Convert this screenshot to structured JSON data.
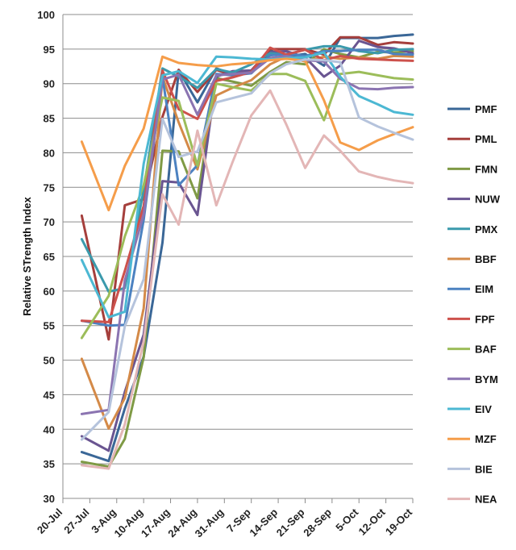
{
  "chart_data": {
    "type": "line",
    "title": "",
    "xlabel": "",
    "ylabel": "Relative STrength Index",
    "ylim": [
      30,
      100
    ],
    "yticks": [
      30,
      35,
      40,
      45,
      50,
      55,
      60,
      65,
      70,
      75,
      80,
      85,
      90,
      95,
      100
    ],
    "grid": "horizontal",
    "legend_position": "right",
    "x_tick_labels": [
      "20-Jul",
      "27-Jul",
      "3-Aug",
      "10-Aug",
      "17-Aug",
      "24-Aug",
      "31-Aug",
      "7-Sep",
      "14-Sep",
      "21-Sep",
      "28-Sep",
      "5-Oct",
      "12-Oct",
      "19-Oct"
    ],
    "x_tick_positions": [
      0,
      1,
      2,
      3,
      4,
      5,
      6,
      7,
      8,
      9,
      10,
      11,
      12,
      13
    ],
    "x": [
      0.7,
      1.7,
      2.3,
      3.0,
      3.7,
      4.3,
      5.0,
      5.7,
      6.3,
      7.0,
      7.7,
      8.3,
      9.0,
      9.7,
      10.3,
      11.0,
      11.7,
      12.3,
      13.0
    ],
    "series": [
      {
        "name": "PMF",
        "color": "#3a6797",
        "values": [
          36.7,
          35.4,
          43.0,
          50.5,
          67.0,
          91.9,
          87.3,
          92.2,
          91.4,
          91.8,
          94.8,
          93.9,
          94.3,
          92.6,
          96.6,
          96.6,
          96.6,
          96.9,
          97.1
        ]
      },
      {
        "name": "PML",
        "color": "#a53f3c",
        "values": [
          70.9,
          53.0,
          72.4,
          73.3,
          85.2,
          92.0,
          88.8,
          92.0,
          91.2,
          91.9,
          95.0,
          95.0,
          95.0,
          94.2,
          96.7,
          96.7,
          95.6,
          96.0,
          95.8
        ]
      },
      {
        "name": "FMN",
        "color": "#7f9a45",
        "values": [
          35.3,
          34.6,
          38.6,
          50.4,
          80.3,
          80.2,
          73.4,
          90.8,
          90.3,
          89.7,
          91.7,
          93.1,
          92.8,
          95.0,
          94.3,
          93.8,
          94.6,
          94.5,
          94.7
        ]
      },
      {
        "name": "NUW",
        "color": "#6a5591",
        "values": [
          39.0,
          36.9,
          45.4,
          53.7,
          75.9,
          75.7,
          71.0,
          91.0,
          91.8,
          91.9,
          94.5,
          94.7,
          93.8,
          91.0,
          92.6,
          96.2,
          95.3,
          95.1,
          94.4
        ]
      },
      {
        "name": "PMX",
        "color": "#3b9aac",
        "values": [
          67.5,
          59.9,
          60.4,
          74.6,
          92.2,
          91.0,
          89.4,
          92.1,
          91.6,
          92.8,
          94.4,
          94.2,
          94.9,
          95.4,
          95.4,
          94.7,
          94.4,
          94.9,
          95.0
        ]
      },
      {
        "name": "BBF",
        "color": "#d48a48",
        "values": [
          50.2,
          40.1,
          44.5,
          57.5,
          91.0,
          84.4,
          77.6,
          88.3,
          89.4,
          90.5,
          92.8,
          93.9,
          93.2,
          93.9,
          93.6,
          93.8,
          93.6,
          94.0,
          93.9
        ]
      },
      {
        "name": "EIM",
        "color": "#4c82c1",
        "values": [
          55.7,
          55.0,
          55.1,
          70.3,
          91.0,
          75.3,
          78.2,
          91.4,
          91.2,
          91.5,
          94.1,
          94.3,
          94.0,
          94.7,
          94.7,
          94.9,
          94.9,
          94.3,
          94.2
        ]
      },
      {
        "name": "FPF",
        "color": "#cd514c",
        "values": [
          55.7,
          55.5,
          62.9,
          72.3,
          91.9,
          86.3,
          84.9,
          90.4,
          90.9,
          91.7,
          95.2,
          94.2,
          94.9,
          93.4,
          94.0,
          93.6,
          93.5,
          93.4,
          93.3
        ]
      },
      {
        "name": "BAF",
        "color": "#9cbd5a",
        "values": [
          53.2,
          59.3,
          67.9,
          75.3,
          88.0,
          87.5,
          78.1,
          90.0,
          89.5,
          89.0,
          91.4,
          91.4,
          90.4,
          84.7,
          91.4,
          91.7,
          91.2,
          90.8,
          90.6
        ]
      },
      {
        "name": "BYM",
        "color": "#8b74b1",
        "values": [
          42.2,
          42.8,
          61.5,
          71.1,
          90.6,
          91.3,
          85.5,
          91.2,
          91.4,
          91.6,
          93.7,
          94.0,
          93.4,
          93.2,
          90.7,
          89.3,
          89.2,
          89.4,
          89.5
        ]
      },
      {
        "name": "EIV",
        "color": "#4cb8d3",
        "values": [
          64.5,
          56.2,
          57.0,
          78.4,
          91.2,
          91.8,
          90.1,
          93.9,
          93.8,
          93.6,
          93.5,
          93.7,
          93.8,
          94.5,
          91.0,
          88.2,
          87.0,
          85.9,
          85.5
        ]
      },
      {
        "name": "MZF",
        "color": "#f59d4a",
        "values": [
          81.6,
          71.7,
          78.1,
          83.5,
          93.9,
          93.0,
          92.7,
          92.5,
          92.8,
          93.0,
          93.4,
          93.6,
          93.3,
          87.6,
          81.5,
          80.4,
          81.8,
          82.7,
          83.7
        ]
      },
      {
        "name": "BIE",
        "color": "#b5c3dc",
        "values": [
          38.5,
          42.5,
          54.9,
          61.7,
          84.9,
          79.4,
          80.2,
          87.3,
          87.9,
          88.6,
          91.5,
          92.8,
          93.5,
          93.4,
          93.1,
          85.1,
          83.8,
          82.9,
          81.9
        ]
      },
      {
        "name": "NEA",
        "color": "#e3b6b6",
        "values": [
          34.8,
          34.3,
          40.7,
          52.7,
          74.0,
          69.6,
          83.2,
          72.4,
          78.6,
          85.4,
          89.0,
          84.1,
          77.8,
          82.5,
          80.3,
          77.3,
          76.5,
          76.0,
          75.6
        ]
      }
    ]
  }
}
